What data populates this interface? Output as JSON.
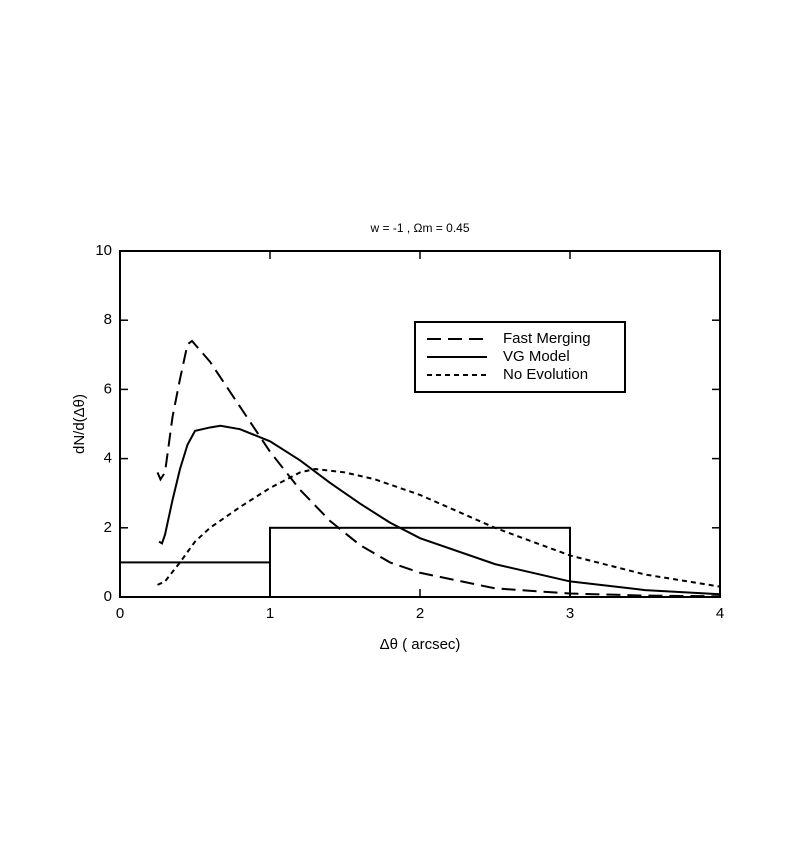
{
  "chart_data": {
    "type": "line",
    "title": "w = -1 , Ωm = 0.45",
    "x_label": "Δθ ( arcsec)",
    "y_label": "dN/d(Δθ)",
    "xlim": [
      0,
      4
    ],
    "xticks": [
      0,
      1,
      2,
      3,
      4
    ],
    "ylim": [
      0,
      10
    ],
    "yticks": [
      0,
      2,
      4,
      6,
      8,
      10
    ],
    "legend_position": "upper right",
    "series": [
      {
        "name": "Fast Merging",
        "color": "#000000",
        "dash": "long",
        "x": [
          0.25,
          0.27,
          0.3,
          0.35,
          0.4,
          0.45,
          0.48,
          0.6,
          0.8,
          1.0,
          1.2,
          1.4,
          1.6,
          1.8,
          2.0,
          2.5,
          3.0,
          3.5,
          4.0
        ],
        "values": [
          3.6,
          3.4,
          3.6,
          5.2,
          6.3,
          7.3,
          7.4,
          6.8,
          5.5,
          4.2,
          3.1,
          2.2,
          1.5,
          1.0,
          0.7,
          0.25,
          0.1,
          0.04,
          0.02
        ]
      },
      {
        "name": "VG Model",
        "color": "#000000",
        "dash": "solid",
        "x": [
          0.26,
          0.28,
          0.3,
          0.35,
          0.4,
          0.45,
          0.5,
          0.6,
          0.67,
          0.8,
          1.0,
          1.2,
          1.4,
          1.6,
          1.8,
          2.0,
          2.5,
          3.0,
          3.5,
          4.0
        ],
        "values": [
          1.6,
          1.55,
          1.8,
          2.8,
          3.7,
          4.4,
          4.8,
          4.9,
          4.95,
          4.85,
          4.5,
          3.95,
          3.3,
          2.7,
          2.15,
          1.7,
          0.95,
          0.45,
          0.2,
          0.08
        ]
      },
      {
        "name": "No Evolution",
        "color": "#000000",
        "dash": "short",
        "x": [
          0.25,
          0.3,
          0.4,
          0.5,
          0.6,
          0.8,
          1.0,
          1.2,
          1.3,
          1.5,
          1.7,
          2.0,
          2.5,
          3.0,
          3.5,
          4.0
        ],
        "values": [
          0.35,
          0.45,
          1.0,
          1.6,
          2.0,
          2.6,
          3.15,
          3.6,
          3.7,
          3.6,
          3.4,
          2.95,
          2.0,
          1.2,
          0.65,
          0.3
        ]
      }
    ],
    "histogram": {
      "bins": [
        0,
        1,
        3
      ],
      "counts": [
        1,
        2
      ],
      "color": "#000000"
    }
  }
}
